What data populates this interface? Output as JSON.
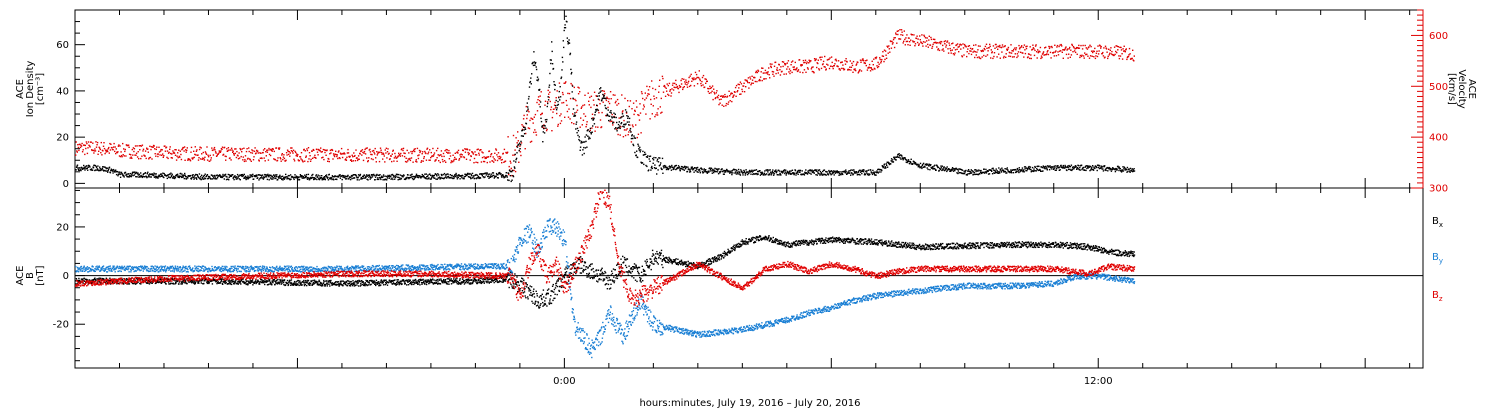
{
  "xlabel": "hours:minutes, July 19, 2016 – July 20, 2016",
  "x_ticks": [
    {
      "hour": 0,
      "label": "0:00"
    },
    {
      "hour": 12,
      "label": "12:00"
    }
  ],
  "colors": {
    "black": "#000000",
    "red": "#e00000",
    "blue": "#1a7fd4"
  },
  "chart_data": [
    {
      "type": "scatter",
      "panel": "plasma",
      "x_units": "hours from 2016-07-20 00:00",
      "xlim": [
        -11,
        19.3
      ],
      "ylabel_left": [
        "ACE",
        "Ion Density",
        "[cm⁻³]"
      ],
      "ylabel_right": [
        "ACE",
        "Velocity",
        "[km/s]"
      ],
      "ylim_left": [
        -2,
        75
      ],
      "ylim_right": [
        300,
        650
      ],
      "yticks_left": [
        "0",
        "20",
        "40",
        "60"
      ],
      "yticks_right": [
        "300",
        "400",
        "500",
        "600"
      ],
      "series": [
        {
          "key": "density",
          "axis": "left",
          "color": "black",
          "points": [
            [
              -11,
              7
            ],
            [
              -10.5,
              7
            ],
            [
              -10.2,
              6
            ],
            [
              -10,
              4
            ],
            [
              -9.5,
              4
            ],
            [
              -8,
              3
            ],
            [
              -6,
              3
            ],
            [
              -4,
              3
            ],
            [
              -2,
              3.5
            ],
            [
              -1.2,
              4
            ],
            [
              -0.9,
              25
            ],
            [
              -0.8,
              40
            ],
            [
              -0.7,
              55
            ],
            [
              -0.6,
              45
            ],
            [
              -0.5,
              20
            ],
            [
              -0.4,
              30
            ],
            [
              -0.3,
              60
            ],
            [
              -0.2,
              35
            ],
            [
              -0.1,
              40
            ],
            [
              0,
              72
            ],
            [
              0.1,
              60
            ],
            [
              0.2,
              30
            ],
            [
              0.3,
              20
            ],
            [
              0.4,
              15
            ],
            [
              0.6,
              25
            ],
            [
              0.8,
              40
            ],
            [
              1,
              30
            ],
            [
              1.2,
              25
            ],
            [
              1.4,
              30
            ],
            [
              1.6,
              15
            ],
            [
              1.8,
              10
            ],
            [
              2,
              8
            ],
            [
              3,
              6
            ],
            [
              4,
              5
            ],
            [
              5,
              5
            ],
            [
              6,
              5
            ],
            [
              7,
              5
            ],
            [
              7.5,
              12
            ],
            [
              8,
              8
            ],
            [
              9,
              5
            ],
            [
              10,
              6
            ],
            [
              11,
              7
            ],
            [
              12,
              7
            ],
            [
              12.8,
              6
            ]
          ]
        },
        {
          "key": "velocity",
          "axis": "right",
          "color": "red",
          "points": [
            [
              -11,
              380
            ],
            [
              -10.5,
              380
            ],
            [
              -10,
              375
            ],
            [
              -9,
              370
            ],
            [
              -8,
              368
            ],
            [
              -6,
              367
            ],
            [
              -4,
              366
            ],
            [
              -2,
              365
            ],
            [
              -1.1,
              365
            ],
            [
              -0.9,
              420
            ],
            [
              -0.7,
              440
            ],
            [
              -0.5,
              460
            ],
            [
              -0.3,
              450
            ],
            [
              0,
              480
            ],
            [
              0.3,
              460
            ],
            [
              0.6,
              450
            ],
            [
              1,
              460
            ],
            [
              1.5,
              430
            ],
            [
              2,
              480
            ],
            [
              2.5,
              500
            ],
            [
              3,
              520
            ],
            [
              3.5,
              470
            ],
            [
              4,
              500
            ],
            [
              4.5,
              530
            ],
            [
              5,
              540
            ],
            [
              5.5,
              540
            ],
            [
              6,
              550
            ],
            [
              6.5,
              540
            ],
            [
              7,
              545
            ],
            [
              7.5,
              600
            ],
            [
              8,
              590
            ],
            [
              9,
              570
            ],
            [
              10,
              570
            ],
            [
              11,
              570
            ],
            [
              12,
              570
            ],
            [
              12.8,
              565
            ]
          ]
        }
      ]
    },
    {
      "type": "scatter",
      "panel": "magnetic",
      "x_units": "hours from 2016-07-20 00:00",
      "xlim": [
        -11,
        19.3
      ],
      "ylabel_left": [
        "ACE",
        "B",
        "[nT]"
      ],
      "ylim": [
        -38,
        36
      ],
      "yticks": [
        "-20",
        "0",
        "20"
      ],
      "series": [
        {
          "key": "Bx",
          "label": "B",
          "sub": "x",
          "color": "black",
          "points": [
            [
              -11,
              -2
            ],
            [
              -8,
              -2
            ],
            [
              -5,
              -3
            ],
            [
              -2,
              -2
            ],
            [
              -1.2,
              -1
            ],
            [
              -0.9,
              -5
            ],
            [
              -0.6,
              -10
            ],
            [
              -0.3,
              -8
            ],
            [
              0,
              0
            ],
            [
              0.3,
              5
            ],
            [
              0.6,
              2
            ],
            [
              1,
              -2
            ],
            [
              1.3,
              5
            ],
            [
              1.7,
              0
            ],
            [
              2,
              8
            ],
            [
              2.5,
              6
            ],
            [
              3,
              4
            ],
            [
              3.5,
              8
            ],
            [
              4,
              14
            ],
            [
              4.5,
              16
            ],
            [
              5,
              13
            ],
            [
              6,
              15
            ],
            [
              7,
              14
            ],
            [
              8,
              12
            ],
            [
              10,
              13
            ],
            [
              11,
              13
            ],
            [
              11.8,
              12
            ],
            [
              12.2,
              10
            ],
            [
              12.8,
              9
            ]
          ]
        },
        {
          "key": "By",
          "label": "B",
          "sub": "y",
          "color": "blue",
          "points": [
            [
              -11,
              3
            ],
            [
              -8,
              3
            ],
            [
              -5,
              3
            ],
            [
              -2,
              4
            ],
            [
              -1.2,
              4
            ],
            [
              -1,
              15
            ],
            [
              -0.8,
              18
            ],
            [
              -0.6,
              10
            ],
            [
              -0.4,
              20
            ],
            [
              -0.2,
              20
            ],
            [
              0,
              15
            ],
            [
              0.2,
              -20
            ],
            [
              0.4,
              -25
            ],
            [
              0.6,
              -30
            ],
            [
              0.8,
              -25
            ],
            [
              1,
              -15
            ],
            [
              1.3,
              -25
            ],
            [
              1.7,
              -10
            ],
            [
              2,
              -20
            ],
            [
              2.5,
              -22
            ],
            [
              3,
              -24
            ],
            [
              3.5,
              -23
            ],
            [
              4,
              -22
            ],
            [
              4.5,
              -20
            ],
            [
              5,
              -18
            ],
            [
              5.5,
              -15
            ],
            [
              6,
              -13
            ],
            [
              6.5,
              -10
            ],
            [
              7,
              -8
            ],
            [
              7.5,
              -7
            ],
            [
              8,
              -6
            ],
            [
              9,
              -4
            ],
            [
              10,
              -4
            ],
            [
              11,
              -3
            ],
            [
              11.5,
              0
            ],
            [
              12,
              0
            ],
            [
              12.8,
              -2
            ]
          ]
        },
        {
          "key": "Bz",
          "label": "B",
          "sub": "z",
          "color": "red",
          "points": [
            [
              -11,
              -3
            ],
            [
              -9,
              -1
            ],
            [
              -7,
              0
            ],
            [
              -5,
              1
            ],
            [
              -3,
              1
            ],
            [
              -1.2,
              0
            ],
            [
              -1,
              -10
            ],
            [
              -0.8,
              5
            ],
            [
              -0.6,
              10
            ],
            [
              -0.4,
              0
            ],
            [
              -0.2,
              5
            ],
            [
              0,
              -5
            ],
            [
              0.4,
              10
            ],
            [
              0.6,
              20
            ],
            [
              0.8,
              35
            ],
            [
              1,
              30
            ],
            [
              1.2,
              5
            ],
            [
              1.5,
              -10
            ],
            [
              2,
              -5
            ],
            [
              2.5,
              0
            ],
            [
              3,
              5
            ],
            [
              3.5,
              0
            ],
            [
              4,
              -5
            ],
            [
              4.5,
              3
            ],
            [
              5,
              5
            ],
            [
              5.5,
              2
            ],
            [
              6,
              5
            ],
            [
              6.5,
              3
            ],
            [
              7,
              0
            ],
            [
              7.5,
              2
            ],
            [
              8,
              3
            ],
            [
              9,
              3
            ],
            [
              10,
              3
            ],
            [
              11,
              3
            ],
            [
              11.8,
              1
            ],
            [
              12.2,
              4
            ],
            [
              12.8,
              3
            ]
          ]
        }
      ]
    }
  ]
}
